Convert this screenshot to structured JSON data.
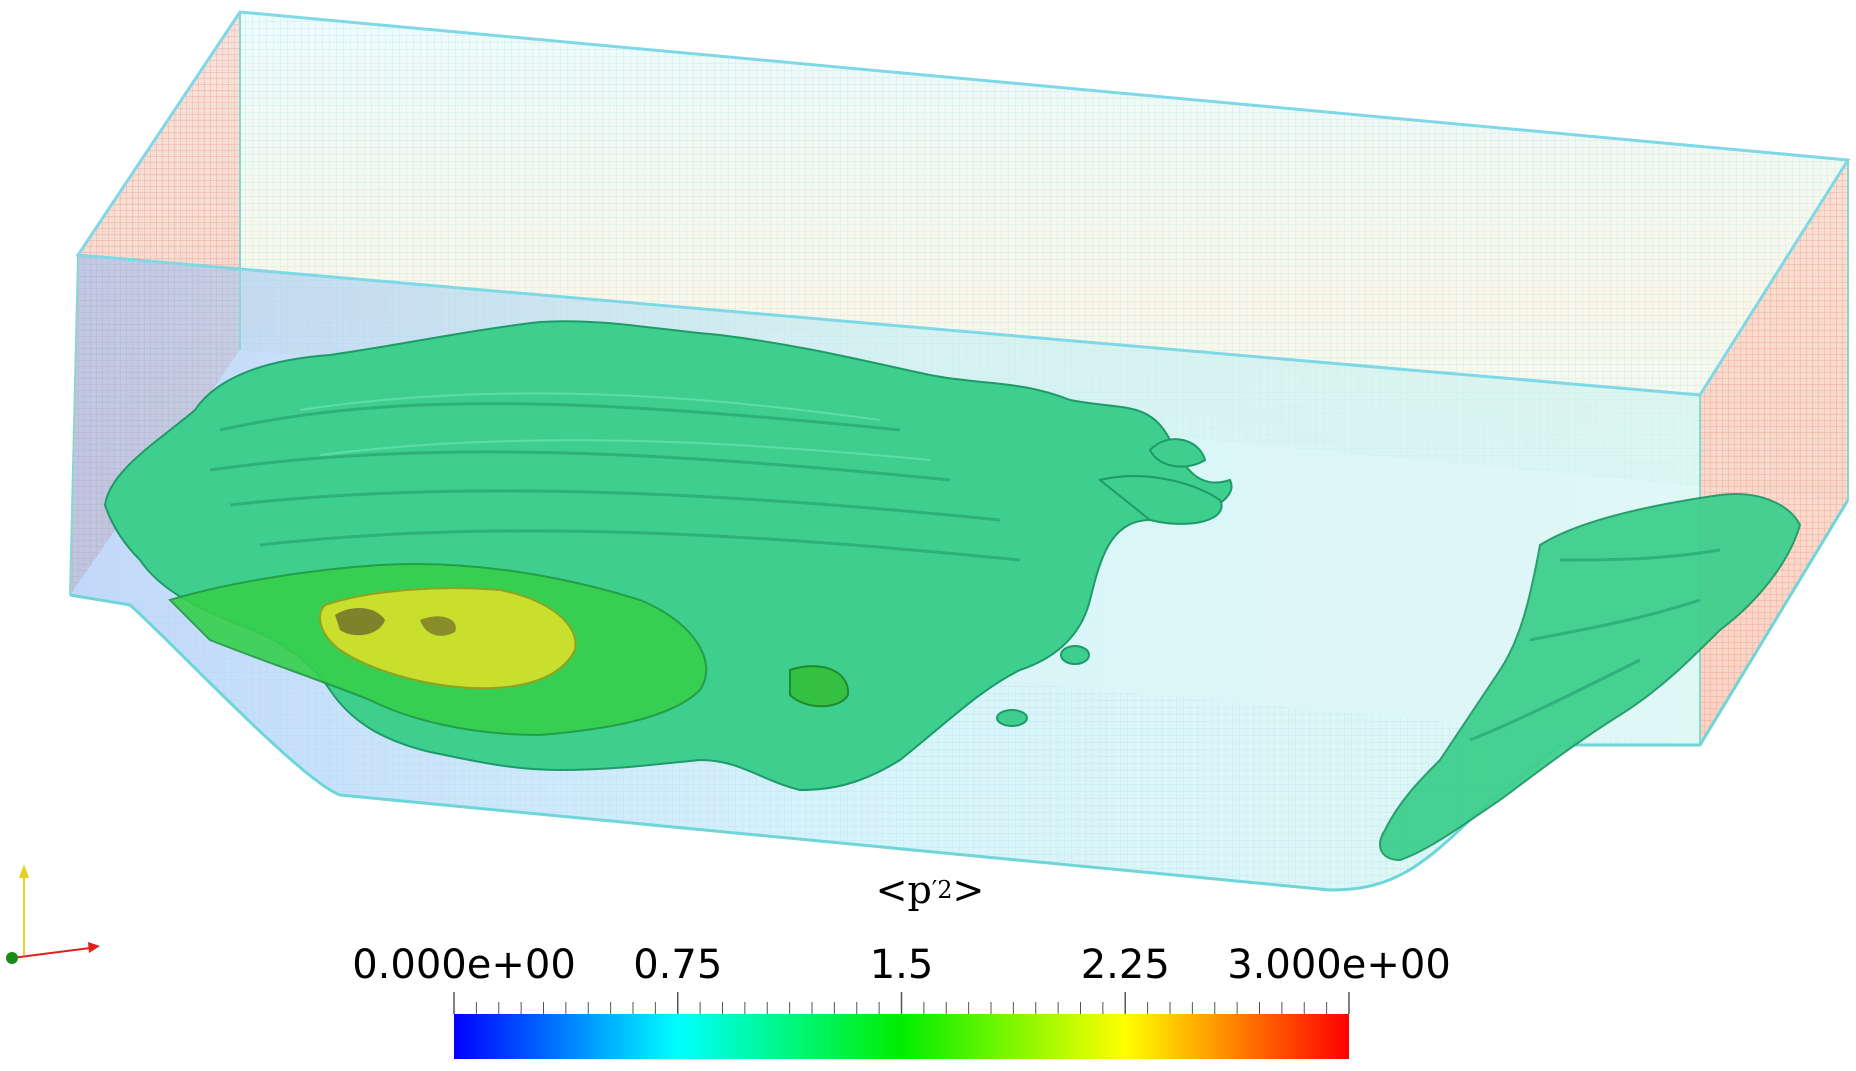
{
  "scalar_bar": {
    "title_base": "<p",
    "title_sup": "′2",
    "title_end": " >",
    "tick_labels": [
      "0.000e+00",
      "0.75",
      "1.5",
      "2.25",
      "3.000e+00"
    ],
    "range": [
      0,
      3
    ],
    "colormap": [
      "#0000ff",
      "#00ffff",
      "#00ff00",
      "#ffff00",
      "#ff0000"
    ]
  },
  "mesh": {
    "wire_color_top": "#9ee8f2",
    "wire_color_side": "#f4a090",
    "isosurface_main": "#3ccf8e",
    "isosurface_core": "#32d63a",
    "isosurface_peak": "#c8e02c"
  },
  "orientation_axes": {
    "x_axis_color": "#e02020",
    "y_axis_color": "#e8d020",
    "z_axis_color": "#1a8a1a"
  }
}
